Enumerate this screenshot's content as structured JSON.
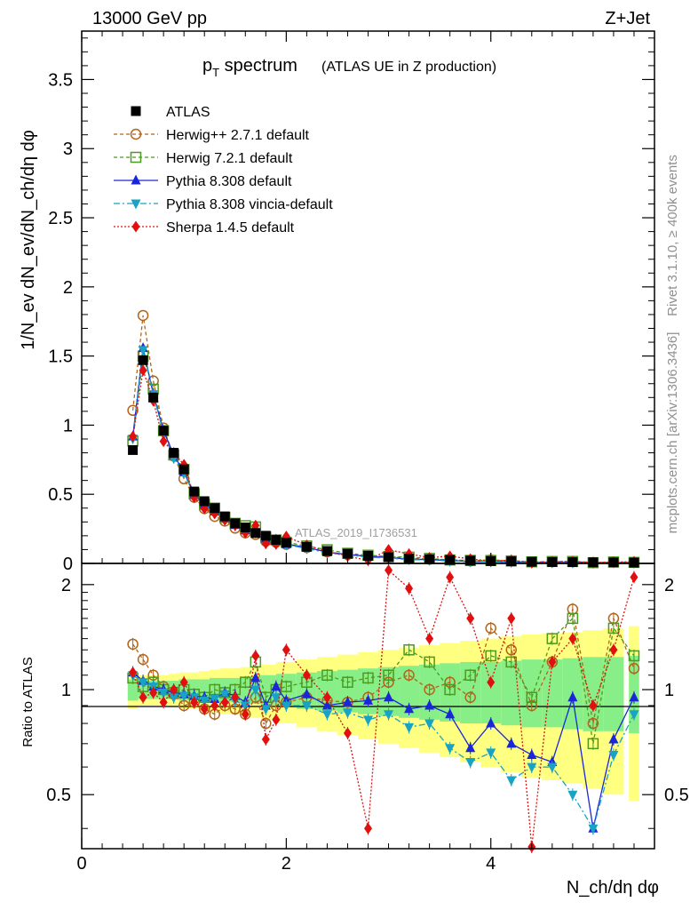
{
  "header": {
    "energy_label": "13000 GeV pp",
    "process_label": "Z+Jet"
  },
  "side_labels": {
    "rivet": "Rivet 3.1.10, ≥ 400k events",
    "mcplots": "mcplots.cern.ch [arXiv:1306.3436]"
  },
  "chart_data": {
    "type": "line",
    "title_main": "p",
    "title_sub": "T",
    "title_rest": " spectrum",
    "title_note": "(ATLAS UE in Z production)",
    "watermark": "ATLAS_2019_I1736531",
    "ylabel_main": "1/N_ev dN_ev/dN_ch/dη dφ",
    "ylabel_ratio": "Ratio to ATLAS",
    "xlabel": "N_ch/dη dφ",
    "xlim": [
      0,
      5.6
    ],
    "ylim_main": [
      0,
      3.85
    ],
    "ylim_ratio": [
      0.35,
      2.3
    ],
    "x_ticks": [
      "0",
      "2",
      "4"
    ],
    "x_tick_values": [
      0,
      2,
      4
    ],
    "y_ticks_main": [
      "0",
      "0.5",
      "1",
      "1.5",
      "2",
      "2.5",
      "3",
      "3.5"
    ],
    "y_tick_values_main": [
      0,
      0.5,
      1,
      1.5,
      2,
      2.5,
      3,
      3.5
    ],
    "y_ticks_ratio": [
      "0.5",
      "1",
      "2"
    ],
    "y_tick_values_ratio": [
      0.5,
      1,
      2
    ],
    "x": [
      0.5,
      0.6,
      0.7,
      0.8,
      0.9,
      1.0,
      1.1,
      1.2,
      1.3,
      1.4,
      1.5,
      1.6,
      1.7,
      1.8,
      1.9,
      2.0,
      2.2,
      2.4,
      2.6,
      2.8,
      3.0,
      3.2,
      3.4,
      3.6,
      3.8,
      4.0,
      4.2,
      4.4,
      4.6,
      4.8,
      5.0,
      5.2,
      5.4
    ],
    "data": {
      "name": "ATLAS",
      "values": [
        0.82,
        1.47,
        1.2,
        0.96,
        0.8,
        0.68,
        0.52,
        0.45,
        0.4,
        0.34,
        0.29,
        0.26,
        0.22,
        0.2,
        0.17,
        0.15,
        0.12,
        0.09,
        0.07,
        0.055,
        0.045,
        0.035,
        0.03,
        0.025,
        0.02,
        0.017,
        0.015,
        0.012,
        0.01,
        0.009,
        0.008,
        0.007,
        0.006
      ]
    },
    "series": [
      {
        "name": "Herwig++ 2.7.1 default",
        "color": "#b2651a",
        "dash": "4,3",
        "marker": "circle",
        "ratio": [
          1.35,
          1.22,
          1.1,
          1.02,
          0.97,
          0.9,
          0.92,
          0.88,
          0.85,
          0.9,
          0.88,
          0.85,
          0.95,
          0.8,
          0.9,
          0.92,
          0.95,
          0.93,
          0.92,
          0.95,
          1.05,
          1.1,
          1.0,
          1.05,
          0.95,
          1.5,
          1.3,
          0.9,
          1.2,
          1.7,
          0.8,
          1.6,
          1.15
        ]
      },
      {
        "name": "Herwig 7.2.1 default",
        "color": "#4c9a1e",
        "dash": "4,3",
        "marker": "square",
        "ratio": [
          1.08,
          1.02,
          1.05,
          1.0,
          0.98,
          1.0,
          0.97,
          0.95,
          1.0,
          0.98,
          1.0,
          1.05,
          1.2,
          0.95,
          1.0,
          1.02,
          1.05,
          1.1,
          1.05,
          1.08,
          1.1,
          1.3,
          1.2,
          1.0,
          1.1,
          1.25,
          1.2,
          0.95,
          1.4,
          1.6,
          0.7,
          1.5,
          1.25
        ]
      },
      {
        "name": "Pythia 8.308 default",
        "color": "#1a27d8",
        "dash": "",
        "marker": "triangle-up",
        "ratio": [
          1.12,
          1.06,
          1.02,
          1.0,
          0.98,
          0.97,
          0.96,
          0.95,
          0.94,
          0.98,
          0.96,
          0.92,
          1.08,
          0.9,
          1.02,
          0.93,
          0.97,
          0.9,
          0.92,
          0.93,
          0.95,
          0.88,
          0.9,
          0.85,
          0.68,
          0.8,
          0.7,
          0.65,
          0.62,
          0.95,
          0.4,
          0.72,
          0.95
        ]
      },
      {
        "name": "Pythia 8.308 vincia-default",
        "color": "#18a2c4",
        "dash": "7,3,2,3",
        "marker": "triangle-down",
        "ratio": [
          1.1,
          1.05,
          1.02,
          0.98,
          0.95,
          0.96,
          0.95,
          0.93,
          0.94,
          0.97,
          0.93,
          0.9,
          1.0,
          0.88,
          0.95,
          0.9,
          0.9,
          0.85,
          0.86,
          0.82,
          0.85,
          0.78,
          0.8,
          0.68,
          0.62,
          0.66,
          0.55,
          0.6,
          0.6,
          0.5,
          0.4,
          0.65,
          0.85
        ]
      },
      {
        "name": "Sherpa 1.4.5 default",
        "color": "#e01010",
        "dash": "2,2",
        "marker": "diamond",
        "ratio": [
          1.12,
          0.95,
          0.98,
          0.92,
          1.0,
          1.05,
          0.92,
          0.88,
          0.9,
          0.92,
          0.95,
          0.85,
          1.25,
          0.72,
          0.82,
          1.3,
          1.1,
          0.95,
          0.75,
          0.4,
          2.2,
          1.95,
          1.4,
          2.1,
          1.6,
          1.05,
          1.6,
          0.35,
          1.2,
          1.4,
          0.9,
          1.3,
          2.1
        ]
      }
    ],
    "ratio_bands": {
      "green_lo": [
        0.93,
        0.94,
        0.94,
        0.94,
        0.94,
        0.93,
        0.93,
        0.93,
        0.92,
        0.92,
        0.92,
        0.91,
        0.91,
        0.9,
        0.9,
        0.89,
        0.88,
        0.87,
        0.86,
        0.85,
        0.84,
        0.83,
        0.82,
        0.81,
        0.8,
        0.8,
        0.79,
        0.78,
        0.78,
        0.77,
        0.76,
        0.76,
        0.75
      ],
      "green_hi": [
        1.07,
        1.06,
        1.06,
        1.06,
        1.06,
        1.07,
        1.07,
        1.07,
        1.08,
        1.08,
        1.08,
        1.09,
        1.09,
        1.1,
        1.1,
        1.11,
        1.12,
        1.13,
        1.14,
        1.15,
        1.16,
        1.17,
        1.18,
        1.19,
        1.2,
        1.2,
        1.21,
        1.22,
        1.22,
        1.23,
        1.24,
        1.24,
        1.25
      ],
      "yellow_lo": [
        0.88,
        0.9,
        0.9,
        0.9,
        0.89,
        0.88,
        0.88,
        0.87,
        0.86,
        0.85,
        0.85,
        0.84,
        0.83,
        0.82,
        0.82,
        0.8,
        0.78,
        0.76,
        0.74,
        0.72,
        0.7,
        0.68,
        0.66,
        0.64,
        0.62,
        0.6,
        0.58,
        0.56,
        0.55,
        0.54,
        0.52,
        0.5,
        0.48
      ],
      "yellow_hi": [
        1.12,
        1.1,
        1.1,
        1.1,
        1.11,
        1.12,
        1.12,
        1.13,
        1.14,
        1.15,
        1.15,
        1.16,
        1.17,
        1.18,
        1.18,
        1.2,
        1.22,
        1.24,
        1.26,
        1.28,
        1.3,
        1.32,
        1.34,
        1.36,
        1.38,
        1.4,
        1.42,
        1.44,
        1.45,
        1.46,
        1.48,
        1.5,
        1.52
      ]
    }
  }
}
